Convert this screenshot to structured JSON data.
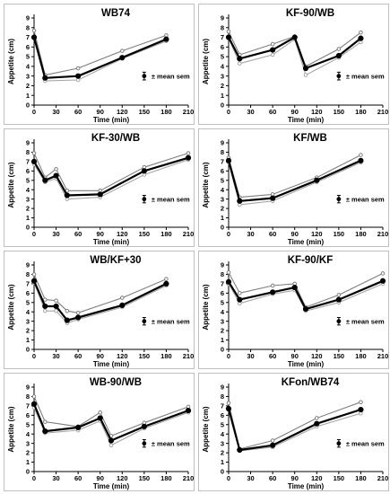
{
  "figure": {
    "y_ticks": [
      "0",
      "1",
      "2",
      "3",
      "4",
      "5",
      "6",
      "7",
      "8",
      "9"
    ],
    "x_ticks": [
      "0",
      "30",
      "60",
      "90",
      "120",
      "150",
      "180",
      "210"
    ],
    "xlabel": "Time (min)",
    "ylabel": "Appetite (cm)",
    "legend_label": "± mean sem"
  },
  "colors": {
    "mean_line": "#000000",
    "upper_line": "#7f7f7f",
    "lower_line": "#a6a6a6",
    "panel_border": "#bfbfbf"
  },
  "chart_data": [
    {
      "type": "line",
      "title": "WB74",
      "xlabel": "Time (min)",
      "ylabel": "Appetite (cm)",
      "xlim": [
        0,
        210
      ],
      "ylim": [
        0,
        9
      ],
      "x": [
        0,
        15,
        60,
        120,
        180
      ],
      "series": [
        {
          "role": "mean",
          "values": [
            7.0,
            2.8,
            3.0,
            4.9,
            6.8
          ]
        },
        {
          "role": "upper",
          "values": [
            7.7,
            3.1,
            3.8,
            5.6,
            7.2
          ]
        },
        {
          "role": "lower",
          "values": [
            6.9,
            2.5,
            2.6,
            4.8,
            6.6
          ]
        }
      ],
      "error_bar": {
        "x": 150,
        "y": 3.0,
        "err": 0.4
      }
    },
    {
      "type": "line",
      "title": "KF-90/WB",
      "xlabel": "Time (min)",
      "ylabel": "Appetite (cm)",
      "xlim": [
        0,
        210
      ],
      "ylim": [
        0,
        9
      ],
      "x": [
        0,
        15,
        60,
        90,
        105,
        150,
        180
      ],
      "series": [
        {
          "role": "mean",
          "values": [
            7.0,
            4.8,
            5.7,
            7.0,
            3.8,
            5.1,
            6.9
          ]
        },
        {
          "role": "upper",
          "values": [
            7.6,
            5.2,
            6.3,
            7.1,
            4.0,
            5.8,
            7.5
          ]
        },
        {
          "role": "lower",
          "values": [
            6.9,
            4.3,
            5.2,
            6.8,
            3.1,
            4.9,
            6.5
          ]
        }
      ],
      "error_bar": {
        "x": 150,
        "y": 3.0,
        "err": 0.4
      }
    },
    {
      "type": "line",
      "title": "KF-30/WB",
      "xlabel": "Time (min)",
      "ylabel": "Appetite (cm)",
      "xlim": [
        0,
        210
      ],
      "ylim": [
        0,
        9
      ],
      "x": [
        0,
        15,
        30,
        45,
        90,
        150,
        210
      ],
      "series": [
        {
          "role": "mean",
          "values": [
            7.0,
            5.0,
            5.5,
            3.4,
            3.5,
            6.0,
            7.4
          ]
        },
        {
          "role": "upper",
          "values": [
            7.9,
            5.3,
            6.2,
            3.9,
            3.9,
            6.4,
            7.9
          ]
        },
        {
          "role": "lower",
          "values": [
            6.7,
            4.8,
            5.2,
            3.0,
            3.2,
            5.6,
            7.2
          ]
        }
      ],
      "error_bar": {
        "x": 150,
        "y": 3.0,
        "err": 0.4
      }
    },
    {
      "type": "line",
      "title": "KF/WB",
      "xlabel": "Time (min)",
      "ylabel": "Appetite (cm)",
      "xlim": [
        0,
        210
      ],
      "ylim": [
        0,
        9
      ],
      "x": [
        0,
        15,
        60,
        120,
        180
      ],
      "series": [
        {
          "role": "mean",
          "values": [
            7.1,
            2.8,
            3.1,
            5.0,
            7.1
          ]
        },
        {
          "role": "upper",
          "values": [
            7.4,
            3.2,
            3.5,
            5.3,
            7.7
          ]
        },
        {
          "role": "lower",
          "values": [
            6.9,
            2.4,
            2.8,
            4.8,
            6.9
          ]
        }
      ],
      "error_bar": {
        "x": 150,
        "y": 3.0,
        "err": 0.4
      }
    },
    {
      "type": "line",
      "title": "WB/KF+30",
      "xlabel": "Time (min)",
      "ylabel": "Appetite (cm)",
      "xlim": [
        0,
        210
      ],
      "ylim": [
        0,
        9
      ],
      "x": [
        0,
        15,
        30,
        45,
        60,
        120,
        180
      ],
      "series": [
        {
          "role": "mean",
          "values": [
            7.3,
            4.6,
            4.6,
            3.1,
            3.4,
            4.7,
            7.0
          ]
        },
        {
          "role": "upper",
          "values": [
            8.0,
            5.3,
            5.2,
            4.1,
            3.9,
            5.5,
            7.5
          ]
        },
        {
          "role": "lower",
          "values": [
            7.1,
            4.1,
            4.1,
            2.8,
            3.2,
            4.5,
            6.8
          ]
        }
      ],
      "error_bar": {
        "x": 150,
        "y": 3.0,
        "err": 0.4
      }
    },
    {
      "type": "line",
      "title": "KF-90/KF",
      "xlabel": "Time (min)",
      "ylabel": "Appetite (cm)",
      "xlim": [
        0,
        210
      ],
      "ylim": [
        0,
        9
      ],
      "x": [
        0,
        15,
        60,
        90,
        105,
        150,
        210
      ],
      "series": [
        {
          "role": "mean",
          "values": [
            7.2,
            5.3,
            6.1,
            6.6,
            4.3,
            5.3,
            7.3
          ]
        },
        {
          "role": "upper",
          "values": [
            8.2,
            6.0,
            6.8,
            7.0,
            4.5,
            5.8,
            8.1
          ]
        },
        {
          "role": "lower",
          "values": [
            7.0,
            4.9,
            5.9,
            6.3,
            4.1,
            5.0,
            7.0
          ]
        }
      ],
      "error_bar": {
        "x": 150,
        "y": 3.0,
        "err": 0.4
      }
    },
    {
      "type": "line",
      "title": "WB-90/WB",
      "xlabel": "Time (min)",
      "ylabel": "Appetite (cm)",
      "xlim": [
        0,
        210
      ],
      "ylim": [
        0,
        9
      ],
      "x": [
        0,
        15,
        60,
        90,
        105,
        150,
        210
      ],
      "series": [
        {
          "role": "mean",
          "values": [
            7.2,
            4.3,
            4.7,
            5.7,
            3.3,
            4.8,
            6.5
          ]
        },
        {
          "role": "upper",
          "values": [
            8.0,
            5.3,
            4.8,
            6.3,
            3.8,
            5.2,
            6.9
          ]
        },
        {
          "role": "lower",
          "values": [
            6.8,
            4.1,
            4.4,
            5.4,
            2.8,
            4.6,
            6.3
          ]
        }
      ],
      "error_bar": {
        "x": 150,
        "y": 3.0,
        "err": 0.4
      }
    },
    {
      "type": "line",
      "title": "KFon/WB74",
      "xlabel": "Time (min)",
      "ylabel": "Appetite (cm)",
      "xlim": [
        0,
        210
      ],
      "ylim": [
        0,
        9
      ],
      "x": [
        0,
        15,
        60,
        120,
        180
      ],
      "series": [
        {
          "role": "mean",
          "values": [
            6.7,
            2.3,
            2.8,
            5.1,
            6.6
          ]
        },
        {
          "role": "upper",
          "values": [
            7.3,
            2.4,
            3.3,
            5.7,
            7.4
          ]
        },
        {
          "role": "lower",
          "values": [
            6.6,
            2.2,
            2.6,
            4.8,
            6.2
          ]
        }
      ],
      "error_bar": {
        "x": 150,
        "y": 3.0,
        "err": 0.4
      }
    }
  ]
}
